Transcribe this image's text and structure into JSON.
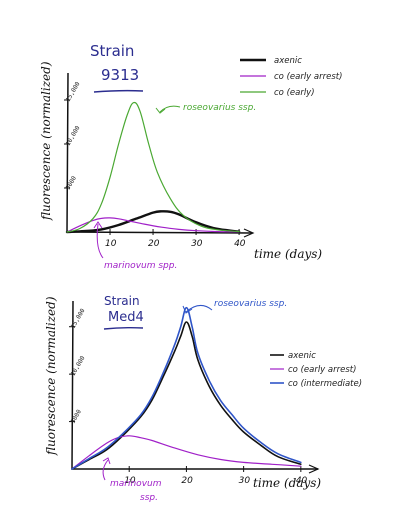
{
  "chart_data": [
    {
      "type": "line",
      "title_line1": "Strain",
      "title_line2": "9313",
      "xlabel": "time (days)",
      "ylabel": "fluorescence (normalized)",
      "xlim": [
        0,
        43
      ],
      "ylim": [
        0,
        17500
      ],
      "x_ticks": [
        "10",
        "20",
        "30",
        "40"
      ],
      "y_ticks": [
        "5000",
        "10,000",
        "15,000"
      ],
      "grid": false,
      "legend_position": "top-right",
      "series": [
        {
          "name": "axenic",
          "color": "#111111",
          "width": 2.4,
          "x": [
            0,
            4,
            8,
            12,
            16,
            20,
            22,
            24,
            26,
            30,
            34,
            38,
            40
          ],
          "y": [
            0,
            100,
            300,
            800,
            1500,
            2200,
            2350,
            2300,
            2000,
            1100,
            450,
            150,
            50
          ]
        },
        {
          "name": "co (early arrest)",
          "color": "#a020c8",
          "width": 1.2,
          "x": [
            0,
            3,
            6,
            8,
            10,
            12,
            14,
            18,
            22,
            26,
            30,
            35,
            40
          ],
          "y": [
            0,
            700,
            1300,
            1550,
            1600,
            1500,
            1300,
            900,
            550,
            300,
            150,
            50,
            20
          ]
        },
        {
          "name": "co (early)",
          "color": "#4aa832",
          "width": 1.2,
          "x": [
            0,
            3,
            6,
            8,
            10,
            12,
            14,
            15.5,
            17,
            19,
            21,
            24,
            27,
            31,
            35,
            40
          ],
          "y": [
            0,
            400,
            1500,
            3200,
            6200,
            10000,
            13300,
            14700,
            13700,
            10000,
            6800,
            3800,
            1900,
            700,
            250,
            50
          ]
        }
      ],
      "annotations": [
        {
          "text": "roseovarius ssp.",
          "color": "#4aa832"
        },
        {
          "text": "marinovum spp.",
          "color": "#a020c8"
        }
      ]
    },
    {
      "type": "line",
      "title_line1": "Strain",
      "title_line2": "Med4",
      "xlabel": "time (days)",
      "ylabel": "fluorescence (normalized)",
      "xlim": [
        0,
        43
      ],
      "ylim": [
        0,
        17500
      ],
      "x_ticks": [
        "10",
        "20",
        "30",
        "40"
      ],
      "y_ticks": [
        "5000",
        "10,000",
        "15,000"
      ],
      "grid": false,
      "legend_position": "right",
      "series": [
        {
          "name": "axenic",
          "color": "#111111",
          "width": 1.6,
          "x": [
            0,
            3,
            6,
            9,
            12,
            14,
            16,
            18,
            19,
            20,
            21,
            22,
            24,
            26,
            28,
            30,
            33,
            36,
            40
          ],
          "y": [
            0,
            1000,
            2000,
            3600,
            5500,
            7300,
            9800,
            12500,
            14000,
            15500,
            14000,
            11500,
            8700,
            6700,
            5200,
            3900,
            2500,
            1300,
            500
          ]
        },
        {
          "name": "co (early arrest)",
          "color": "#a020c8",
          "width": 1.2,
          "x": [
            0,
            3,
            6,
            8,
            10,
            12,
            14,
            18,
            22,
            26,
            30,
            35,
            40
          ],
          "y": [
            0,
            1400,
            2700,
            3300,
            3500,
            3300,
            3000,
            2200,
            1500,
            1000,
            700,
            500,
            300
          ]
        },
        {
          "name": "co (intermediate)",
          "color": "#2f55c8",
          "width": 1.6,
          "x": [
            0,
            3,
            6,
            9,
            12,
            14,
            16,
            18,
            19,
            20,
            21,
            22,
            24,
            26,
            28,
            30,
            33,
            36,
            40
          ],
          "y": [
            0,
            1100,
            2200,
            3800,
            5700,
            7600,
            10200,
            13200,
            15000,
            17000,
            15000,
            12200,
            9300,
            7200,
            5700,
            4300,
            2800,
            1600,
            700
          ]
        }
      ],
      "annotations": [
        {
          "text": "roseovarius ssp.",
          "color": "#2f55c8"
        },
        {
          "text": "marinovum",
          "color": "#a020c8"
        },
        {
          "text": "ssp.",
          "color": "#a020c8"
        }
      ]
    }
  ]
}
